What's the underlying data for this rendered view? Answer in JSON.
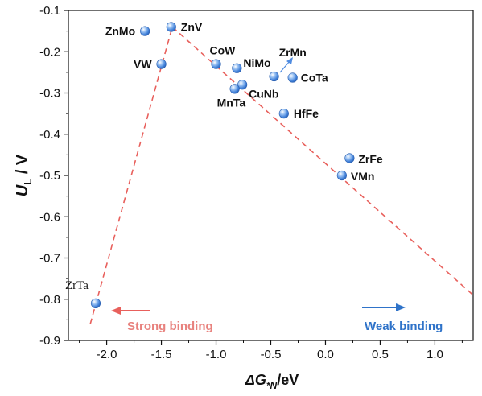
{
  "chart_data": {
    "type": "scatter",
    "xlabel": {
      "prefix": "ΔG",
      "sub": "*N",
      "suffix": "/eV"
    },
    "ylabel": {
      "prefix": "U",
      "sub": "L",
      "suffix": " / V"
    },
    "xlim": [
      -2.35,
      1.35
    ],
    "ylim": [
      -0.9,
      -0.1
    ],
    "xticks": [
      "-2.0",
      "-1.5",
      "-1.0",
      "-0.5",
      "0.0",
      "0.5",
      "1.0"
    ],
    "xtick_values": [
      -2.0,
      -1.5,
      -1.0,
      -0.5,
      0.0,
      0.5,
      1.0
    ],
    "yticks": [
      "-0.1",
      "-0.2",
      "-0.3",
      "-0.4",
      "-0.5",
      "-0.6",
      "-0.7",
      "-0.8",
      "-0.9"
    ],
    "ytick_values": [
      -0.1,
      -0.2,
      -0.3,
      -0.4,
      -0.5,
      -0.6,
      -0.7,
      -0.8,
      -0.9
    ],
    "grid": false,
    "points": [
      {
        "label": "ZnMo",
        "x": -1.65,
        "y": -0.15
      },
      {
        "label": "ZnV",
        "x": -1.41,
        "y": -0.14
      },
      {
        "label": "VW",
        "x": -1.5,
        "y": -0.23
      },
      {
        "label": "CoW",
        "x": -1.0,
        "y": -0.23
      },
      {
        "label": "NiMo",
        "x": -0.81,
        "y": -0.24
      },
      {
        "label": "ZrMn",
        "x": -0.47,
        "y": -0.26
      },
      {
        "label": "CoTa",
        "x": -0.3,
        "y": -0.263
      },
      {
        "label": "CuNb",
        "x": -0.76,
        "y": -0.28
      },
      {
        "label": "MnTa",
        "x": -0.83,
        "y": -0.29
      },
      {
        "label": "HfFe",
        "x": -0.38,
        "y": -0.35
      },
      {
        "label": "ZrFe",
        "x": 0.22,
        "y": -0.458
      },
      {
        "label": "VMn",
        "x": 0.15,
        "y": -0.5
      },
      {
        "label": "ZrTa",
        "x": -2.1,
        "y": -0.81
      }
    ],
    "volcano_lines": [
      {
        "x": [
          -2.15,
          -1.4
        ],
        "y": [
          -0.86,
          -0.14
        ]
      },
      {
        "x": [
          -1.4,
          1.35
        ],
        "y": [
          -0.14,
          -0.79
        ]
      }
    ],
    "annotations": {
      "strong": "Strong binding",
      "weak": "Weak binding"
    },
    "colors": {
      "marker": "#4f8be0",
      "line": "#e8605c",
      "strong": "#e8827e",
      "weak": "#2f73c9"
    }
  }
}
